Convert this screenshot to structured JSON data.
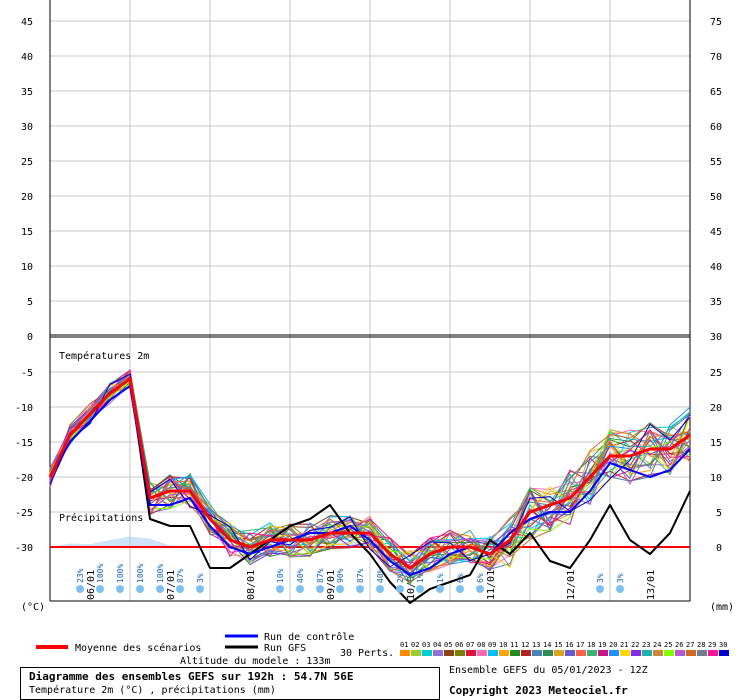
{
  "chart_data": {
    "type": "line",
    "title": "Diagramme des ensembles GEFS sur 192h : 54.7N 56E",
    "subtitle": "Température 2m (°C) , précipitations (mm)",
    "upper_panel": {
      "left_ticks": [
        "45",
        "40",
        "35",
        "30",
        "25",
        "20",
        "15",
        "10",
        "5",
        "0"
      ],
      "right_ticks": [
        "75",
        "70",
        "65",
        "60",
        "55",
        "50",
        "45",
        "40",
        "35",
        "30"
      ]
    },
    "lower_panel": {
      "label_temperature": "Températures 2m",
      "label_precipitation": "Précipitations",
      "left_ticks": [
        "-5",
        "-10",
        "-15",
        "-20",
        "-25",
        "-30"
      ],
      "right_ticks": [
        "25",
        "20",
        "15",
        "10",
        "5",
        "0"
      ],
      "left_unit": "(°C)",
      "right_unit": "(mm)"
    },
    "ylim_temperature": [
      -38,
      45
    ],
    "ylim_precipitation": [
      -8,
      75
    ],
    "x_dates": [
      "06/01",
      "07/01",
      "08/01",
      "09/01",
      "10/01",
      "11/01",
      "12/01",
      "13/01"
    ],
    "x_hours": [
      0,
      6,
      12,
      18,
      24,
      30,
      36,
      42,
      48,
      54,
      60,
      66,
      72,
      78,
      84,
      90,
      96,
      102,
      108,
      114,
      120,
      126,
      132,
      138,
      144,
      150,
      156,
      162,
      168,
      174,
      180,
      186,
      192
    ],
    "series": [
      {
        "name": "Moyenne des scénarios",
        "color": "#ff0000",
        "values": [
          -20,
          -14,
          -11,
          -8,
          -6,
          -23,
          -22,
          -22,
          -26,
          -29,
          -30,
          -29,
          -29,
          -29,
          -28,
          -28,
          -28,
          -31,
          -33,
          -31,
          -30,
          -30,
          -31,
          -29,
          -25,
          -24,
          -23,
          -20,
          -17,
          -17,
          -16,
          -16,
          -14
        ]
      },
      {
        "name": "Run de contrôle",
        "color": "#0000ff",
        "values": [
          -20,
          -15,
          -12,
          -9,
          -7,
          -24,
          -24,
          -23,
          -27,
          -30,
          -31,
          -30,
          -29,
          -28,
          -28,
          -27,
          -29,
          -32,
          -34,
          -33,
          -31,
          -30,
          -31,
          -28,
          -26,
          -25,
          -25,
          -22,
          -18,
          -19,
          -20,
          -19,
          -16
        ]
      },
      {
        "name": "Run GFS",
        "color": "#000000",
        "values": [
          -20,
          -14,
          -11,
          -8,
          -6,
          -26,
          -27,
          -27,
          -33,
          -33,
          -31,
          -29,
          -27,
          -26,
          -24,
          -28,
          -31,
          -35,
          -38,
          -36,
          -35,
          -34,
          -29,
          -31,
          -28,
          -32,
          -33,
          -29,
          -24,
          -29,
          -31,
          -28,
          -22
        ]
      }
    ],
    "precip_mean": [
      0,
      0.5,
      0.4,
      1.0,
      1.5,
      1.2,
      0.2,
      0.2,
      0.1,
      0,
      0,
      0,
      0,
      0,
      0.3,
      0.8,
      0.4,
      0,
      0,
      0,
      0,
      0,
      0,
      0,
      0,
      0,
      0,
      0,
      0,
      0,
      0,
      0,
      0
    ],
    "snow_probabilities": [
      {
        "hour": 3,
        "label": "23%"
      },
      {
        "hour": 9,
        "label": "100%"
      },
      {
        "hour": 15,
        "label": "100%"
      },
      {
        "hour": 21,
        "label": "100%"
      },
      {
        "hour": 27,
        "label": "100%"
      },
      {
        "hour": 33,
        "label": "87%"
      },
      {
        "hour": 39,
        "label": "3%"
      },
      {
        "hour": 63,
        "label": "10%"
      },
      {
        "hour": 69,
        "label": "40%"
      },
      {
        "hour": 75,
        "label": "87%"
      },
      {
        "hour": 81,
        "label": "90%"
      },
      {
        "hour": 87,
        "label": "87%"
      },
      {
        "hour": 93,
        "label": "40%"
      },
      {
        "hour": 99,
        "label": "2%"
      },
      {
        "hour": 105,
        "label": "1%"
      },
      {
        "hour": 111,
        "label": "1%"
      },
      {
        "hour": 117,
        "label": "6%"
      },
      {
        "hour": 123,
        "label": "6%"
      },
      {
        "hour": 159,
        "label": "3%"
      },
      {
        "hour": 165,
        "label": "3%"
      }
    ],
    "perturbation_ids": [
      "01",
      "02",
      "03",
      "04",
      "05",
      "06",
      "07",
      "08",
      "09",
      "10",
      "11",
      "12",
      "13",
      "14",
      "15",
      "16",
      "17",
      "18",
      "19",
      "20",
      "21",
      "22",
      "23",
      "24",
      "25",
      "26",
      "27",
      "28",
      "29",
      "30"
    ],
    "perturbation_colors": [
      "#ff8c00",
      "#9acd32",
      "#00ced1",
      "#9370db",
      "#8b4513",
      "#808000",
      "#dc143c",
      "#ff69b4",
      "#00bfff",
      "#ffa500",
      "#228b22",
      "#b22222",
      "#4682b4",
      "#2e8b57",
      "#daa520",
      "#6a5acd",
      "#ff6347",
      "#3cb371",
      "#c71585",
      "#1e90ff",
      "#ffd700",
      "#8a2be2",
      "#20b2aa",
      "#cd853f",
      "#7fff00",
      "#ba55d3",
      "#d2691e",
      "#708090",
      "#ff1493",
      "#0000cd"
    ],
    "grid": true
  },
  "legend": {
    "mean_label": "Moyenne des scénarios",
    "control_label": "Run de contrôle",
    "gfs_label": "Run GFS",
    "perts_label": "30 Perts.",
    "altitude": "Altitude du modele : 133m"
  },
  "footer": {
    "title": "Diagramme des ensembles GEFS sur 192h : 54.7N 56E",
    "subtitle": "Température 2m (°C) , précipitations (mm)",
    "run_info": "Ensemble GEFS du 05/01/2023 - 12Z",
    "copyright": "Copyright 2023 Meteociel.fr"
  }
}
